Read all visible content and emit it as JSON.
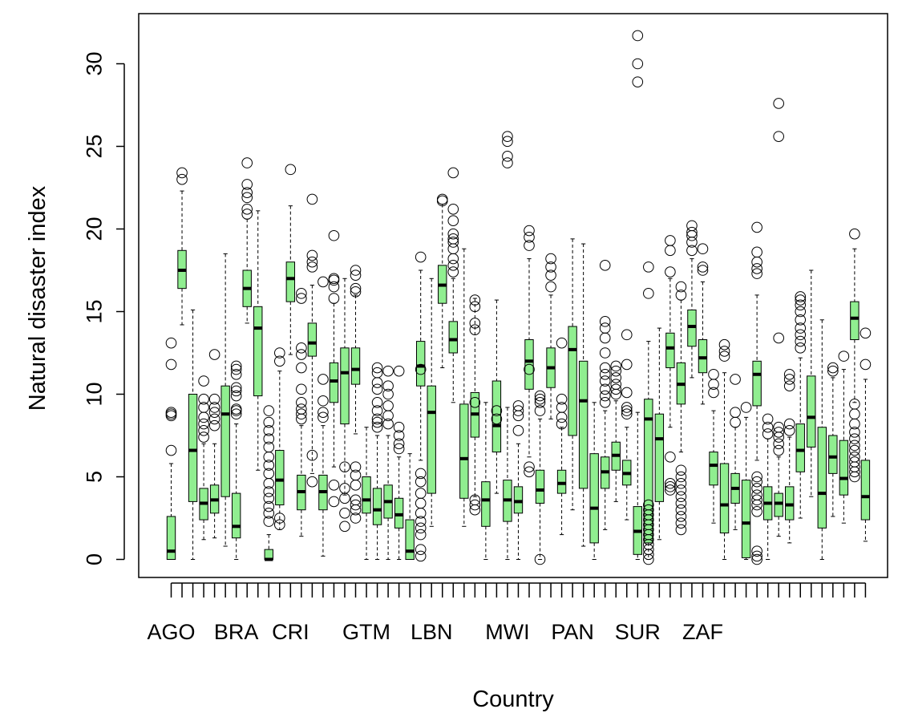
{
  "chart_data": {
    "type": "boxplot",
    "title": "",
    "xlabel": "Country",
    "ylabel": "Natural disaster index",
    "ylim": [
      -1,
      33
    ],
    "yticks": [
      0,
      5,
      10,
      15,
      20,
      25,
      30
    ],
    "xtick_labels": [
      "AGO",
      "BRA",
      "CRI",
      "GTM",
      "LBN",
      "MWI",
      "PAN",
      "SUR",
      "ZAF"
    ],
    "xtick_label_positions": [
      1,
      7,
      12,
      19,
      25,
      32,
      38,
      44,
      50
    ],
    "box_fill": "#90EE90",
    "grid": false,
    "legend": "none",
    "boxes": [
      {
        "pos": 1,
        "lw": 0,
        "q1": 0,
        "med": 0.5,
        "q3": 2.6,
        "uw": 5.8,
        "out": [
          6.6,
          8.7,
          8.8,
          8.9,
          11.8,
          13.1
        ]
      },
      {
        "pos": 2,
        "lw": 14.2,
        "q1": 16.4,
        "med": 17.5,
        "q3": 18.7,
        "uw": 22.3,
        "out": [
          23.0,
          23.4
        ]
      },
      {
        "pos": 3,
        "lw": 0,
        "q1": 3.5,
        "med": 6.6,
        "q3": 10.0,
        "uw": 15.1,
        "out": []
      },
      {
        "pos": 4,
        "lw": 1.2,
        "q1": 2.4,
        "med": 3.4,
        "q3": 4.3,
        "uw": 7.0,
        "out": [
          7.4,
          7.8,
          8.2,
          8.6,
          9.2,
          9.7,
          10.8
        ]
      },
      {
        "pos": 5,
        "lw": 1.3,
        "q1": 2.8,
        "med": 3.6,
        "q3": 4.5,
        "uw": 7.0,
        "out": [
          8.1,
          8.5,
          8.9,
          9.2,
          9.7,
          12.4
        ]
      },
      {
        "pos": 6,
        "lw": 0.8,
        "q1": 3.8,
        "med": 8.8,
        "q3": 10.5,
        "uw": 18.5,
        "out": []
      },
      {
        "pos": 7,
        "lw": 0,
        "q1": 1.3,
        "med": 2.0,
        "q3": 4.0,
        "uw": 8.2,
        "out": [
          8.8,
          9.0,
          9.1,
          9.9,
          10.2,
          10.4,
          11.2,
          11.5,
          11.7
        ]
      },
      {
        "pos": 8,
        "lw": 14.3,
        "q1": 15.3,
        "med": 16.4,
        "q3": 17.5,
        "uw": 20.6,
        "out": [
          20.9,
          21.2,
          21.9,
          22.2,
          22.7,
          24.0
        ]
      },
      {
        "pos": 9,
        "lw": 5.4,
        "q1": 9.9,
        "med": 14.0,
        "q3": 15.3,
        "uw": 21.1,
        "out": []
      },
      {
        "pos": 10,
        "lw": 0,
        "q1": 0,
        "med": 0,
        "q3": 0.6,
        "uw": 1.5,
        "out": [
          2.3,
          2.8,
          3.2,
          3.7,
          4.1,
          4.6,
          5.2,
          5.7,
          6.2,
          6.8,
          7.3,
          7.8,
          8.3,
          9.0
        ]
      },
      {
        "pos": 11,
        "lw": 1.8,
        "q1": 3.3,
        "med": 4.8,
        "q3": 6.6,
        "uw": 11.4,
        "out": [
          12.0,
          12.5,
          2.1,
          2.5
        ]
      },
      {
        "pos": 12,
        "lw": 12.4,
        "q1": 15.6,
        "med": 17.0,
        "q3": 18.0,
        "uw": 21.4,
        "out": [
          23.6
        ]
      },
      {
        "pos": 13,
        "lw": 1.4,
        "q1": 3.0,
        "med": 4.1,
        "q3": 5.1,
        "uw": 8.1,
        "out": [
          8.5,
          8.8,
          9.1,
          9.5,
          10.3,
          11.6,
          12.4,
          12.8,
          15.8,
          16.1
        ]
      },
      {
        "pos": 14,
        "lw": 5.2,
        "q1": 12.3,
        "med": 13.1,
        "q3": 14.3,
        "uw": 16.6,
        "out": [
          4.7,
          6.3,
          17.7,
          18.0,
          18.4,
          21.8
        ]
      },
      {
        "pos": 15,
        "lw": 0.2,
        "q1": 3.0,
        "med": 4.1,
        "q3": 5.1,
        "uw": 8.1,
        "out": [
          8.6,
          8.9,
          9.6,
          10.9,
          16.8
        ]
      },
      {
        "pos": 16,
        "lw": 5.6,
        "q1": 9.5,
        "med": 10.8,
        "q3": 11.9,
        "uw": 15.5,
        "out": [
          3.5,
          4.5,
          15.8,
          16.5,
          16.9,
          17.0,
          19.6
        ]
      },
      {
        "pos": 17,
        "lw": 3.9,
        "q1": 8.2,
        "med": 11.3,
        "q3": 12.8,
        "uw": 17.0,
        "out": [
          2.0,
          2.8,
          3.7,
          4.3,
          5.6
        ]
      },
      {
        "pos": 18,
        "lw": 7.6,
        "q1": 10.6,
        "med": 11.5,
        "q3": 12.8,
        "uw": 16.0,
        "out": [
          2.5,
          3.0,
          3.3,
          3.6,
          16.2,
          16.4,
          17.2,
          17.5,
          4.5,
          5.1,
          5.6
        ]
      },
      {
        "pos": 19,
        "lw": 0,
        "q1": 2.8,
        "med": 3.6,
        "q3": 5.0,
        "uw": 8.0,
        "out": []
      },
      {
        "pos": 20,
        "lw": 0,
        "q1": 2.1,
        "med": 3.0,
        "q3": 4.3,
        "uw": 7.5,
        "out": [
          8.0,
          8.3,
          8.5,
          9.0,
          9.5,
          10.3,
          10.7,
          11.3,
          11.6
        ]
      },
      {
        "pos": 21,
        "lw": 0,
        "q1": 2.5,
        "med": 3.5,
        "q3": 4.5,
        "uw": 7.5,
        "out": [
          8.2,
          8.7,
          9.3,
          10.0,
          10.5,
          11.4
        ]
      },
      {
        "pos": 22,
        "lw": 0,
        "q1": 1.9,
        "med": 2.7,
        "q3": 3.7,
        "uw": 6.2,
        "out": [
          6.7,
          7.0,
          7.5,
          8.0,
          11.4
        ]
      },
      {
        "pos": 23,
        "lw": 0,
        "q1": 0,
        "med": 0.5,
        "q3": 2.4,
        "uw": 6.4,
        "out": []
      },
      {
        "pos": 24,
        "lw": 6.0,
        "q1": 10.5,
        "med": 11.7,
        "q3": 13.2,
        "uw": 17.5,
        "out": [
          0.2,
          0.6,
          1.5,
          1.9,
          2.3,
          2.8,
          3.4,
          4.0,
          4.7,
          5.2,
          18.3,
          11.5
        ]
      },
      {
        "pos": 25,
        "lw": 2.0,
        "q1": 4.0,
        "med": 8.9,
        "q3": 10.5,
        "uw": 17.0,
        "out": []
      },
      {
        "pos": 26,
        "lw": 11.6,
        "q1": 15.5,
        "med": 16.6,
        "q3": 17.8,
        "uw": 21.5,
        "out": [
          21.7,
          21.8
        ]
      },
      {
        "pos": 27,
        "lw": 9.5,
        "q1": 12.5,
        "med": 13.3,
        "q3": 14.4,
        "uw": 17.0,
        "out": [
          17.4,
          17.8,
          18.2,
          18.8,
          19.2,
          19.4,
          19.7,
          20.5,
          21.2,
          23.4
        ]
      },
      {
        "pos": 28,
        "lw": 2.0,
        "q1": 3.7,
        "med": 6.1,
        "q3": 9.4,
        "uw": 18.8,
        "out": []
      },
      {
        "pos": 29,
        "lw": 3.8,
        "q1": 7.4,
        "med": 8.8,
        "q3": 10.1,
        "uw": 15.8,
        "out": [
          3.0,
          3.3,
          3.6,
          13.9,
          14.3,
          15.3,
          15.7,
          9.5
        ]
      },
      {
        "pos": 30,
        "lw": 0,
        "q1": 2.0,
        "med": 3.6,
        "q3": 4.7,
        "uw": 9.5,
        "out": []
      },
      {
        "pos": 31,
        "lw": 4.0,
        "q1": 6.5,
        "med": 8.1,
        "q3": 10.8,
        "uw": 15.7,
        "out": [
          8.5,
          9.0
        ]
      },
      {
        "pos": 32,
        "lw": 0,
        "q1": 2.3,
        "med": 3.6,
        "q3": 4.8,
        "uw": 9.2,
        "out": [
          24.0,
          24.4,
          25.3,
          25.6
        ]
      },
      {
        "pos": 33,
        "lw": 0,
        "q1": 2.8,
        "med": 3.5,
        "q3": 4.4,
        "uw": 7.0,
        "out": [
          7.8,
          8.7,
          9.0,
          9.3
        ]
      },
      {
        "pos": 34,
        "lw": 6.2,
        "q1": 10.3,
        "med": 12.0,
        "q3": 13.3,
        "uw": 18.2,
        "out": [
          11.5,
          19.0,
          19.5,
          19.9,
          5.3,
          5.6
        ]
      },
      {
        "pos": 35,
        "lw": 0,
        "q1": 3.4,
        "med": 4.2,
        "q3": 5.4,
        "uw": 8.5,
        "out": [
          0.0,
          9.0,
          9.5,
          9.7,
          9.9
        ]
      },
      {
        "pos": 36,
        "lw": 8.5,
        "q1": 10.4,
        "med": 11.6,
        "q3": 12.8,
        "uw": 16.0,
        "out": [
          16.5,
          17.2,
          17.7,
          18.2
        ]
      },
      {
        "pos": 37,
        "lw": 1.5,
        "q1": 4.0,
        "med": 4.6,
        "q3": 5.4,
        "uw": 8.0,
        "out": [
          8.2,
          8.6,
          9.2,
          9.7,
          13.1
        ]
      },
      {
        "pos": 38,
        "lw": 3.0,
        "q1": 7.5,
        "med": 12.7,
        "q3": 14.1,
        "uw": 19.4,
        "out": []
      },
      {
        "pos": 39,
        "lw": 0.8,
        "q1": 4.3,
        "med": 9.6,
        "q3": 12.0,
        "uw": 19.1,
        "out": []
      },
      {
        "pos": 40,
        "lw": 0,
        "q1": 1.0,
        "med": 3.1,
        "q3": 6.4,
        "uw": 9.5,
        "out": []
      },
      {
        "pos": 41,
        "lw": 1.8,
        "q1": 4.3,
        "med": 5.3,
        "q3": 6.2,
        "uw": 9.0,
        "out": [
          9.5,
          9.9,
          10.3,
          10.8,
          11.2,
          11.6,
          12.5,
          13.4,
          14.0,
          14.4,
          17.8
        ]
      },
      {
        "pos": 42,
        "lw": 3.5,
        "q1": 5.4,
        "med": 6.3,
        "q3": 7.1,
        "uw": 9.6,
        "out": [
          10.0,
          10.3,
          10.6,
          11.0,
          11.4,
          11.7
        ]
      },
      {
        "pos": 43,
        "lw": 2.4,
        "q1": 4.5,
        "med": 5.2,
        "q3": 6.0,
        "uw": 8.0,
        "out": [
          8.8,
          9.0,
          9.2,
          10.1,
          11.8,
          13.6
        ]
      },
      {
        "pos": 44,
        "lw": 0,
        "q1": 0.3,
        "med": 1.7,
        "q3": 3.2,
        "uw": 8.9,
        "out": [
          28.9,
          30.0,
          31.7
        ]
      },
      {
        "pos": 45,
        "lw": 0,
        "q1": 1.0,
        "med": 8.5,
        "q3": 9.7,
        "uw": 13.2,
        "out": [
          0.0,
          0.3,
          0.6,
          0.9,
          1.2,
          1.5,
          1.8,
          2.1,
          2.4,
          2.7,
          3.0,
          3.3,
          16.1,
          17.7
        ]
      },
      {
        "pos": 46,
        "lw": 1.2,
        "q1": 3.5,
        "med": 7.3,
        "q3": 8.8,
        "uw": 14.0,
        "out": []
      },
      {
        "pos": 47,
        "lw": 8.0,
        "q1": 11.6,
        "med": 12.8,
        "q3": 13.7,
        "uw": 17.0,
        "out": [
          4.2,
          4.4,
          4.6,
          6.2,
          17.4,
          18.7,
          19.3
        ]
      },
      {
        "pos": 48,
        "lw": 6.5,
        "q1": 9.4,
        "med": 10.6,
        "q3": 11.9,
        "uw": 15.7,
        "out": [
          1.8,
          2.2,
          2.6,
          3.0,
          3.4,
          3.8,
          4.2,
          4.6,
          5.0,
          5.4,
          16.0,
          16.5
        ]
      },
      {
        "pos": 49,
        "lw": 11.0,
        "q1": 12.9,
        "med": 14.1,
        "q3": 15.1,
        "uw": 18.2,
        "out": [
          18.7,
          19.2,
          19.6,
          19.8,
          20.2
        ]
      },
      {
        "pos": 50,
        "lw": 9.4,
        "q1": 11.3,
        "med": 12.2,
        "q3": 13.3,
        "uw": 16.8,
        "out": [
          17.5,
          17.7,
          18.8
        ]
      },
      {
        "pos": 51,
        "lw": 2.2,
        "q1": 4.5,
        "med": 5.7,
        "q3": 6.5,
        "uw": 9.0,
        "out": [
          10.1,
          10.6,
          11.2
        ]
      },
      {
        "pos": 52,
        "lw": 0,
        "q1": 1.6,
        "med": 3.3,
        "q3": 5.8,
        "uw": 11.3,
        "out": [
          12.3,
          12.6,
          13.0
        ]
      },
      {
        "pos": 53,
        "lw": 1.8,
        "q1": 3.4,
        "med": 4.3,
        "q3": 5.2,
        "uw": 8.0,
        "out": [
          8.3,
          8.9,
          10.9
        ]
      },
      {
        "pos": 54,
        "lw": 0,
        "q1": 0.1,
        "med": 2.2,
        "q3": 4.8,
        "uw": 8.6,
        "out": [
          9.2
        ]
      },
      {
        "pos": 55,
        "lw": 6.0,
        "q1": 9.3,
        "med": 11.2,
        "q3": 12.0,
        "uw": 16.0,
        "out": [
          0.0,
          0.2,
          0.5,
          2.9,
          3.3,
          3.6,
          3.9,
          4.3,
          4.7,
          5.0,
          17.3,
          17.6,
          18.0,
          18.6,
          20.1
        ]
      },
      {
        "pos": 56,
        "lw": 0,
        "q1": 2.4,
        "med": 3.4,
        "q3": 4.4,
        "uw": 7.3,
        "out": [
          7.6,
          8.0,
          8.5
        ]
      },
      {
        "pos": 57,
        "lw": 1.4,
        "q1": 2.6,
        "med": 3.4,
        "q3": 4.0,
        "uw": 6.2,
        "out": [
          6.6,
          7.0,
          7.4,
          7.7,
          8.0,
          13.4,
          25.6,
          27.6
        ]
      },
      {
        "pos": 58,
        "lw": 1.0,
        "q1": 2.4,
        "med": 3.3,
        "q3": 4.4,
        "uw": 7.4,
        "out": [
          7.8,
          8.2,
          10.5,
          10.9,
          11.2
        ]
      },
      {
        "pos": 59,
        "lw": 2.5,
        "q1": 5.3,
        "med": 6.6,
        "q3": 8.2,
        "uw": 12.2,
        "out": [
          12.8,
          13.2,
          13.6,
          14.0,
          14.5,
          15.0,
          15.4,
          15.7,
          15.9
        ]
      },
      {
        "pos": 60,
        "lw": 3.8,
        "q1": 6.8,
        "med": 8.6,
        "q3": 11.1,
        "uw": 17.5,
        "out": []
      },
      {
        "pos": 61,
        "lw": 0,
        "q1": 1.9,
        "med": 4.0,
        "q3": 8.0,
        "uw": 14.5,
        "out": []
      },
      {
        "pos": 62,
        "lw": 2.6,
        "q1": 5.2,
        "med": 6.2,
        "q3": 7.5,
        "uw": 11.0,
        "out": [
          11.4,
          11.6
        ]
      },
      {
        "pos": 63,
        "lw": 2.2,
        "q1": 3.9,
        "med": 4.9,
        "q3": 7.2,
        "uw": 11.5,
        "out": [
          12.3
        ]
      },
      {
        "pos": 64,
        "lw": 9.5,
        "q1": 13.3,
        "med": 14.6,
        "q3": 15.6,
        "uw": 18.8,
        "out": [
          5.0,
          5.3,
          5.6,
          5.9,
          6.2,
          6.6,
          6.9,
          7.3,
          7.7,
          8.2,
          8.8,
          9.4,
          19.7
        ]
      },
      {
        "pos": 65,
        "lw": 1.1,
        "q1": 2.4,
        "med": 3.8,
        "q3": 6.0,
        "uw": 10.9,
        "out": [
          11.8,
          13.7
        ]
      }
    ]
  }
}
